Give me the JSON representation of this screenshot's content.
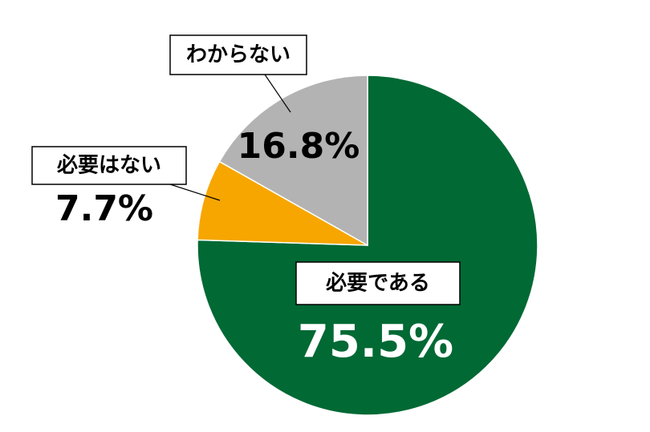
{
  "chart_data": {
    "type": "pie",
    "categories": [
      "必要である",
      "必要はない",
      "わからない"
    ],
    "values": [
      75.5,
      7.7,
      16.8
    ],
    "value_labels": [
      "75.5%",
      "7.7%",
      "16.8%"
    ],
    "colors": [
      "#006934",
      "#f7a600",
      "#b3b3b3"
    ]
  }
}
